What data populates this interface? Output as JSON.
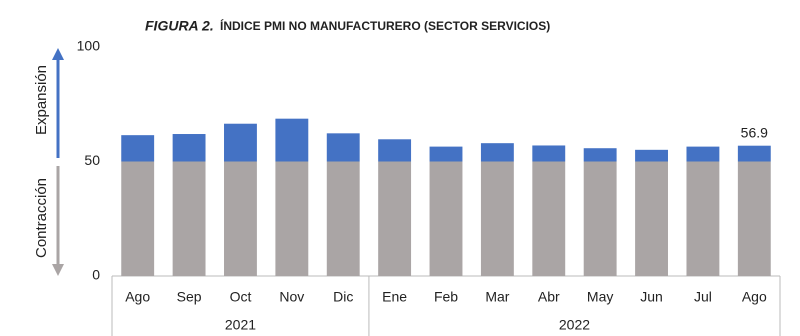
{
  "chart_data": {
    "type": "threshold_bar",
    "title_label": "FIGURA 2.",
    "title": "ÍNDICE PMI NO MANUFACTURERO (SECTOR SERVICIOS)",
    "upper_axis_label": "Expansión",
    "lower_axis_label": "Contracción",
    "categories": [
      "Ago",
      "Sep",
      "Oct",
      "Nov",
      "Dic",
      "Ene",
      "Feb",
      "Mar",
      "Abr",
      "May",
      "Jun",
      "Jul",
      "Ago"
    ],
    "groups": [
      {
        "name": "2021",
        "count": 5
      },
      {
        "name": "2022",
        "count": 8
      }
    ],
    "values": [
      61.5,
      62,
      66.5,
      68.7,
      62.3,
      59.7,
      56.5,
      58,
      57,
      55.8,
      55.1,
      56.5,
      56.9
    ],
    "value_labels": [
      null,
      null,
      null,
      null,
      null,
      null,
      null,
      null,
      null,
      null,
      null,
      null,
      "56.9"
    ],
    "threshold": 50,
    "above_color": "#4472c4",
    "below_color": "#aaa5a5",
    "ylim": [
      0,
      100
    ],
    "yticks": [
      0,
      50,
      100
    ],
    "grid": false
  }
}
